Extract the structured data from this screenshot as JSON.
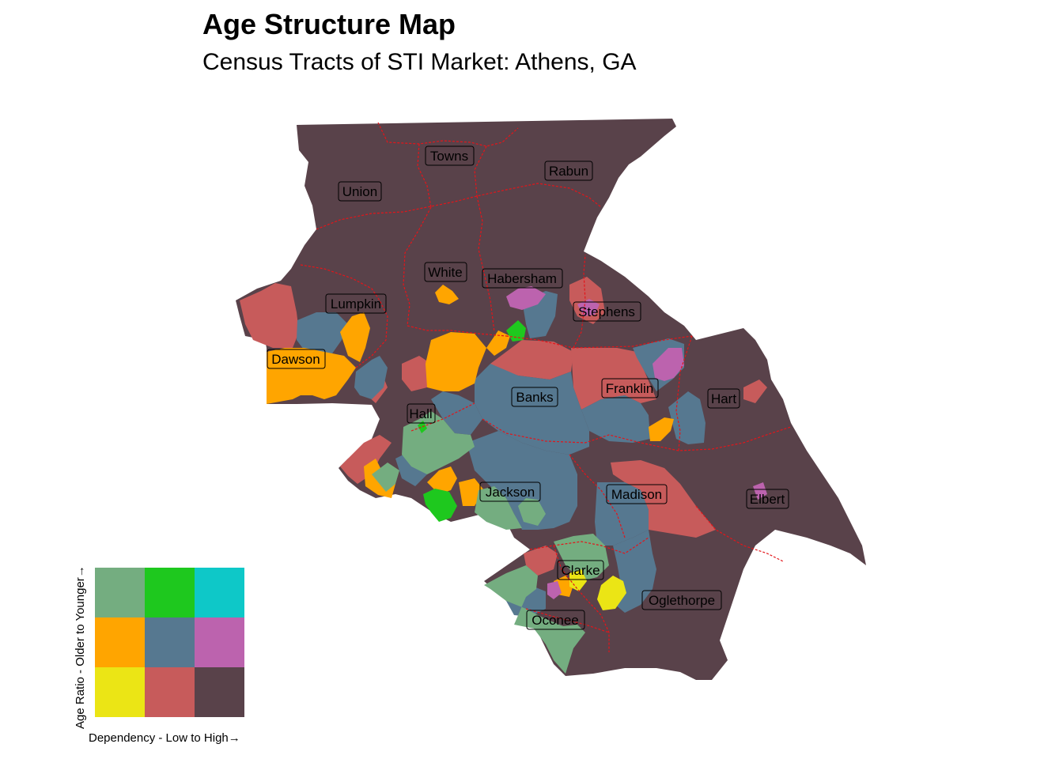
{
  "title": "Age Structure Map",
  "subtitle": "Census Tracts of STI Market: Athens, GA",
  "colors": {
    "dark": "#59424a",
    "red": "#c75b5b",
    "blue": "#567890",
    "orange": "#ffa500",
    "sage": "#74ad80",
    "green": "#1ec81e",
    "yellow": "#ebe515",
    "magenta": "#bc63ae",
    "teal": "#0ec8c8",
    "border": "#e3151a"
  },
  "counties": [
    {
      "name": "Towns"
    },
    {
      "name": "Rabun"
    },
    {
      "name": "Union"
    },
    {
      "name": "White"
    },
    {
      "name": "Habersham"
    },
    {
      "name": "Lumpkin"
    },
    {
      "name": "Stephens"
    },
    {
      "name": "Dawson"
    },
    {
      "name": "Franklin"
    },
    {
      "name": "Banks"
    },
    {
      "name": "Hart"
    },
    {
      "name": "Hall"
    },
    {
      "name": "Jackson"
    },
    {
      "name": "Madison"
    },
    {
      "name": "Elbert"
    },
    {
      "name": "Clarke"
    },
    {
      "name": "Oglethorpe"
    },
    {
      "name": "Oconee"
    }
  ],
  "legend": {
    "x_label": "Dependency - Low to High→",
    "y_label": "Age Ratio - Older to Younger→",
    "cells": [
      [
        "#74ad80",
        "#1ec81e",
        "#0ec8c8"
      ],
      [
        "#ffa500",
        "#567890",
        "#bc63ae"
      ],
      [
        "#ebe515",
        "#c75b5b",
        "#59424a"
      ]
    ]
  }
}
